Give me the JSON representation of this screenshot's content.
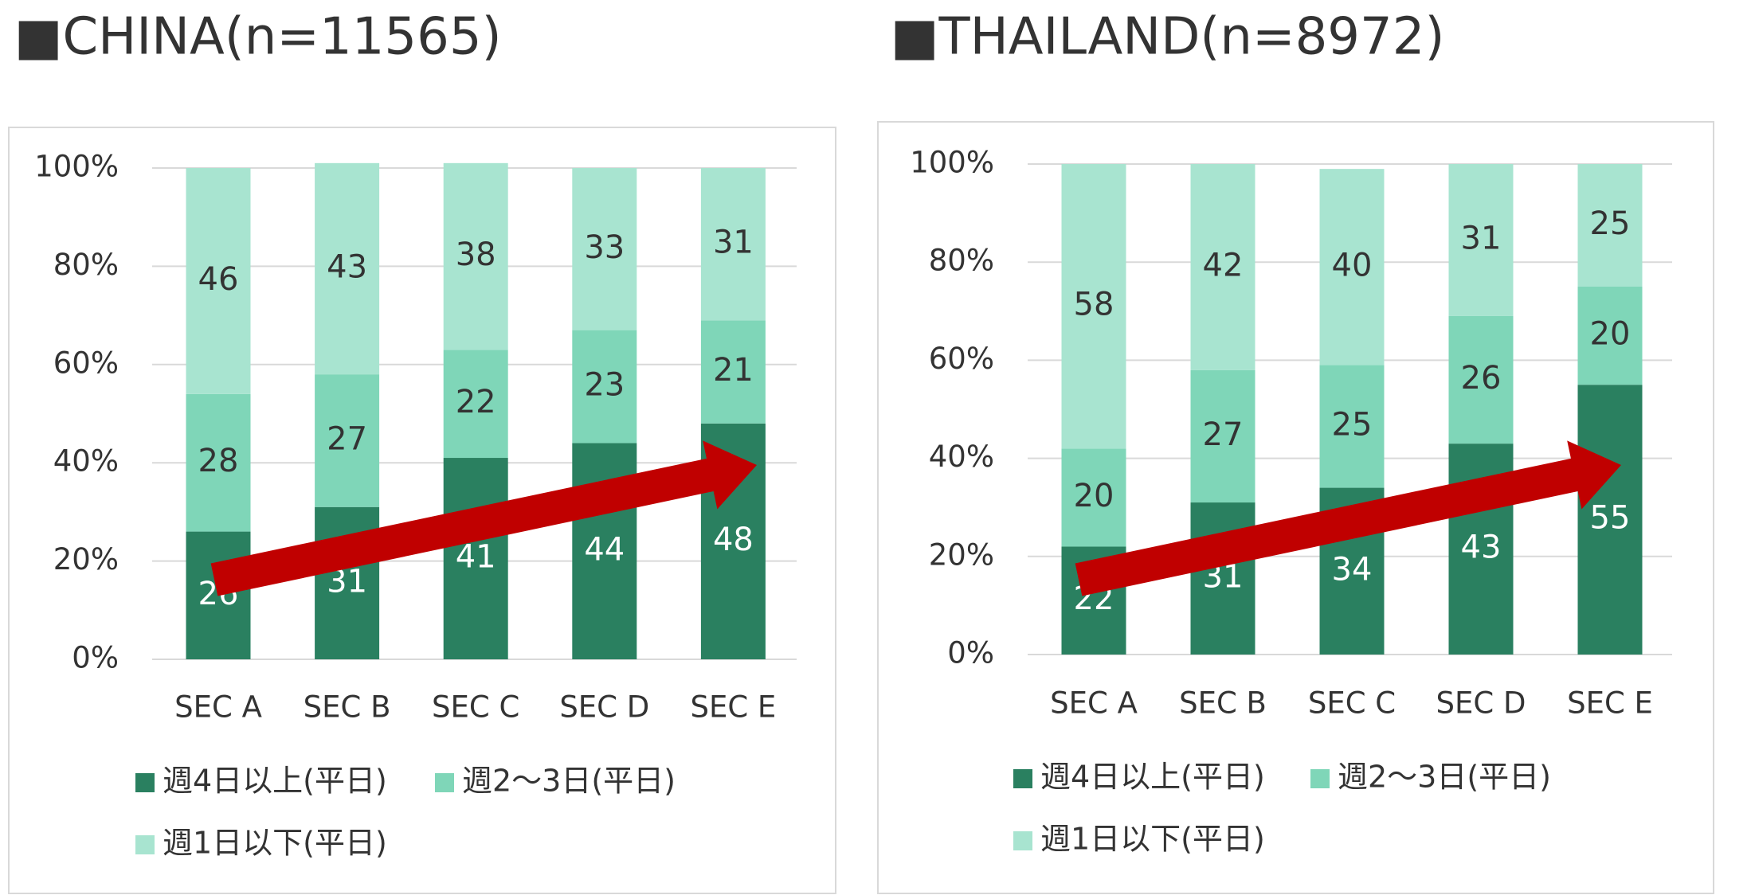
{
  "chart_data": [
    {
      "type": "bar",
      "stacked": true,
      "title": "■CHINA(n=11565)",
      "categories": [
        "SEC A",
        "SEC B",
        "SEC C",
        "SEC D",
        "SEC E"
      ],
      "series": [
        {
          "name": "週4日以上(平日)",
          "color": "#2a8060",
          "values": [
            26,
            31,
            41,
            44,
            48
          ]
        },
        {
          "name": "週2～3日(平日)",
          "color": "#7fd6b8",
          "values": [
            28,
            27,
            22,
            23,
            21
          ]
        },
        {
          "name": "週1日以下(平日)",
          "color": "#a8e4d0",
          "values": [
            46,
            43,
            38,
            33,
            31
          ]
        }
      ],
      "ylim": [
        0,
        100
      ],
      "yticks": [
        {
          "value": 0,
          "label": "0%"
        },
        {
          "value": 20,
          "label": "20%"
        },
        {
          "value": 40,
          "label": "40%"
        },
        {
          "value": 60,
          "label": "60%"
        },
        {
          "value": 80,
          "label": "80%"
        },
        {
          "value": 100,
          "label": "100%"
        }
      ],
      "grid": true
    },
    {
      "type": "bar",
      "stacked": true,
      "title": "■THAILAND(n=8972)",
      "categories": [
        "SEC A",
        "SEC B",
        "SEC C",
        "SEC D",
        "SEC E"
      ],
      "series": [
        {
          "name": "週4日以上(平日)",
          "color": "#2a8060",
          "values": [
            22,
            31,
            34,
            43,
            55
          ]
        },
        {
          "name": "週2～3日(平日)",
          "color": "#7fd6b8",
          "values": [
            20,
            27,
            25,
            26,
            20
          ]
        },
        {
          "name": "週1日以下(平日)",
          "color": "#a8e4d0",
          "values": [
            58,
            42,
            40,
            31,
            25
          ]
        }
      ],
      "ylim": [
        0,
        100
      ],
      "yticks": [
        {
          "value": 0,
          "label": "0%"
        },
        {
          "value": 20,
          "label": "20%"
        },
        {
          "value": 40,
          "label": "40%"
        },
        {
          "value": 60,
          "label": "60%"
        },
        {
          "value": 80,
          "label": "80%"
        },
        {
          "value": 100,
          "label": "100%"
        }
      ],
      "grid": true
    }
  ]
}
